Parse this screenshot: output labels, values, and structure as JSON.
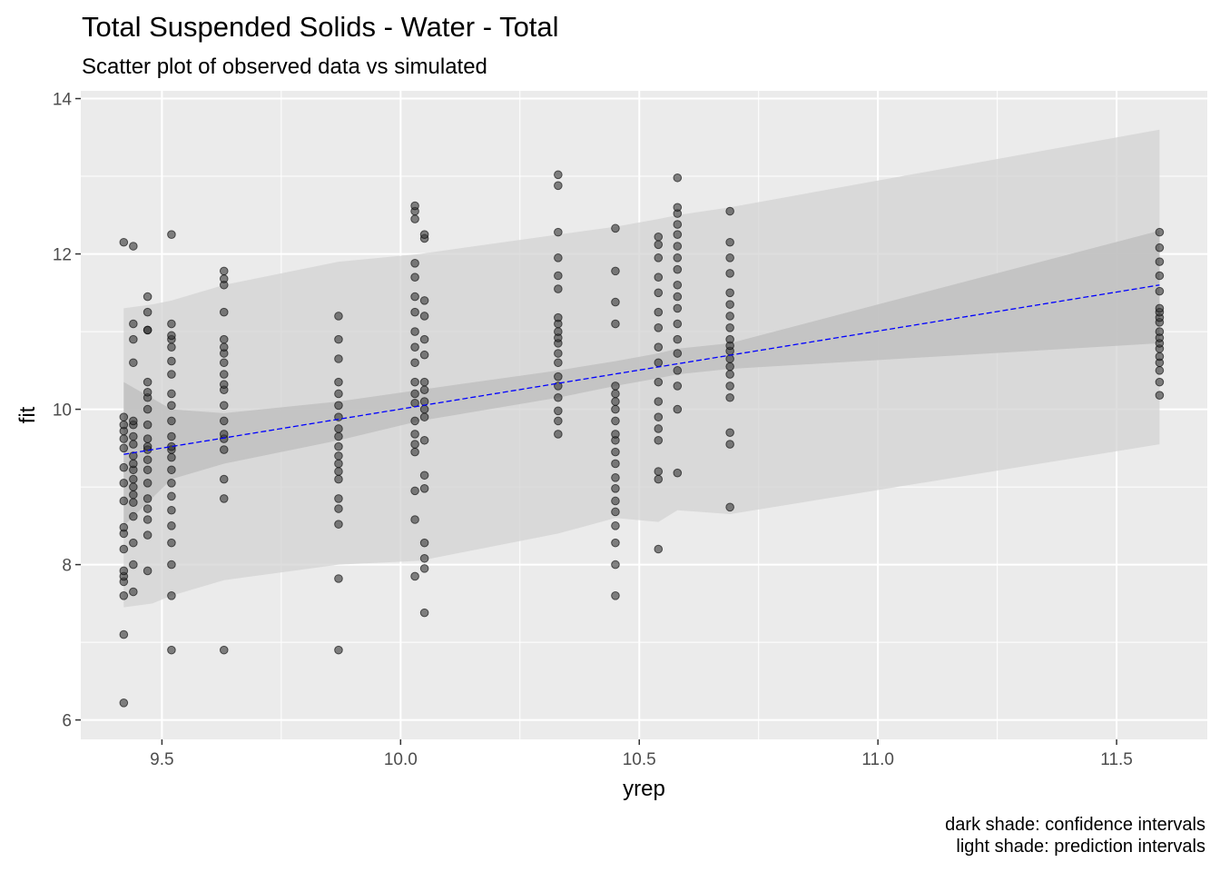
{
  "title": "Total Suspended Solids - Water - Total",
  "subtitle": "Scatter plot of observed data vs simulated",
  "caption": {
    "line1": "dark shade: confidence intervals",
    "line2": "light shade: prediction intervals"
  },
  "colors": {
    "panel": "#EBEBEB",
    "grid": "#FFFFFF",
    "point": "#333333",
    "fit_line": "#0000FF",
    "confidence_band": "#BEBEBE",
    "prediction_band": "#D3D3D3"
  },
  "chart_data": {
    "type": "scatter",
    "xlabel": "yrep",
    "ylabel": "fit",
    "xlim": [
      9.33,
      11.69
    ],
    "ylim": [
      5.75,
      14.1
    ],
    "x_ticks": [
      9.5,
      10.0,
      10.5,
      11.0,
      11.5
    ],
    "x_tick_labels": [
      "9.5",
      "10.0",
      "10.5",
      "11.0",
      "11.5"
    ],
    "y_ticks": [
      6,
      8,
      10,
      12,
      14
    ],
    "y_tick_labels": [
      "6",
      "8",
      "10",
      "12",
      "14"
    ],
    "grid": true,
    "fit_line": {
      "x": [
        9.42,
        11.59
      ],
      "y": [
        9.42,
        11.6
      ]
    },
    "confidence_band": {
      "x": [
        9.42,
        9.52,
        9.63,
        9.87,
        10.04,
        10.33,
        10.45,
        10.54,
        10.58,
        10.69,
        11.59
      ],
      "upper": [
        10.35,
        10.0,
        9.95,
        10.1,
        10.25,
        10.5,
        10.62,
        10.72,
        10.78,
        10.85,
        12.3
      ],
      "lower": [
        8.5,
        9.1,
        9.3,
        9.6,
        9.85,
        10.15,
        10.3,
        10.4,
        10.45,
        10.52,
        10.85
      ]
    },
    "prediction_band": {
      "x": [
        9.42,
        9.48,
        9.52,
        9.63,
        9.87,
        10.04,
        10.33,
        10.45,
        10.54,
        10.58,
        10.69,
        11.59
      ],
      "upper": [
        11.3,
        11.35,
        11.4,
        11.6,
        11.9,
        12.0,
        12.25,
        12.35,
        12.45,
        12.5,
        12.6,
        13.6
      ],
      "lower": [
        7.45,
        7.5,
        7.6,
        7.8,
        8.0,
        8.05,
        8.4,
        8.6,
        8.55,
        8.7,
        8.65,
        9.55
      ]
    },
    "series": [
      {
        "x": 9.42,
        "y": [
          6.22,
          7.1,
          7.6,
          7.78,
          7.85,
          7.92,
          8.2,
          8.4,
          8.48,
          8.82,
          9.05,
          9.25,
          9.5,
          9.62,
          9.72,
          9.8,
          9.9,
          12.15
        ]
      },
      {
        "x": 9.44,
        "y": [
          7.65,
          8.0,
          8.28,
          8.62,
          8.8,
          8.9,
          9.0,
          9.1,
          9.22,
          9.3,
          9.4,
          9.55,
          9.65,
          9.8,
          9.85,
          10.6,
          10.9,
          11.1,
          12.1
        ]
      },
      {
        "x": 9.47,
        "y": [
          7.92,
          8.38,
          8.58,
          8.72,
          8.85,
          9.05,
          9.22,
          9.35,
          9.48,
          9.52,
          9.62,
          9.8,
          10.0,
          10.15,
          10.22,
          10.35,
          11.02,
          11.02,
          11.25,
          11.45
        ]
      },
      {
        "x": 9.52,
        "y": [
          6.9,
          7.6,
          8.0,
          8.28,
          8.5,
          8.7,
          8.88,
          9.05,
          9.22,
          9.38,
          9.48,
          9.52,
          9.65,
          9.85,
          10.05,
          10.2,
          10.45,
          10.62,
          10.8,
          10.9,
          10.95,
          11.1,
          12.25
        ]
      },
      {
        "x": 9.63,
        "y": [
          6.9,
          8.85,
          9.1,
          9.48,
          9.62,
          9.68,
          9.85,
          10.05,
          10.25,
          10.32,
          10.45,
          10.6,
          10.72,
          10.8,
          10.9,
          11.25,
          11.6,
          11.68,
          11.78
        ]
      },
      {
        "x": 9.87,
        "y": [
          6.9,
          7.82,
          8.52,
          8.72,
          8.85,
          9.1,
          9.2,
          9.3,
          9.4,
          9.52,
          9.65,
          9.75,
          9.9,
          10.05,
          10.2,
          10.35,
          10.65,
          10.9,
          11.2
        ]
      },
      {
        "x": 10.03,
        "y": [
          7.85,
          8.58,
          8.95,
          9.45,
          9.55,
          9.68,
          9.85,
          10.08,
          10.2,
          10.35,
          10.6,
          10.8,
          11.0,
          11.25,
          11.45,
          11.7,
          11.88,
          12.45,
          12.55,
          12.62
        ]
      },
      {
        "x": 10.05,
        "y": [
          7.38,
          7.95,
          8.08,
          8.28,
          8.98,
          9.15,
          9.6,
          9.9,
          10.0,
          10.1,
          10.25,
          10.35,
          10.7,
          10.9,
          11.2,
          11.4,
          12.2,
          12.25
        ]
      },
      {
        "x": 10.33,
        "y": [
          9.68,
          9.85,
          9.98,
          10.15,
          10.3,
          10.42,
          10.6,
          10.72,
          10.85,
          10.92,
          11.0,
          11.1,
          11.18,
          11.55,
          11.72,
          11.95,
          12.28,
          12.88,
          13.02
        ]
      },
      {
        "x": 10.45,
        "y": [
          7.6,
          8.0,
          8.28,
          8.5,
          8.68,
          8.82,
          8.98,
          9.12,
          9.3,
          9.45,
          9.6,
          9.68,
          9.85,
          10.0,
          10.1,
          10.2,
          10.3,
          11.1,
          11.38,
          11.78,
          12.33
        ]
      },
      {
        "x": 10.54,
        "y": [
          8.2,
          9.1,
          9.2,
          9.6,
          9.75,
          9.9,
          10.1,
          10.35,
          10.6,
          10.8,
          11.05,
          11.25,
          11.5,
          11.7,
          11.95,
          12.12,
          12.22
        ]
      },
      {
        "x": 10.58,
        "y": [
          9.18,
          10.0,
          10.3,
          10.5,
          10.72,
          10.9,
          11.1,
          11.3,
          11.45,
          11.6,
          11.8,
          11.95,
          12.1,
          12.25,
          12.38,
          12.52,
          12.6,
          12.98
        ]
      },
      {
        "x": 10.69,
        "y": [
          8.74,
          9.55,
          9.7,
          10.15,
          10.3,
          10.45,
          10.55,
          10.65,
          10.75,
          10.82,
          10.9,
          11.05,
          11.2,
          11.35,
          11.5,
          11.75,
          11.95,
          12.15,
          12.55
        ]
      },
      {
        "x": 11.59,
        "y": [
          10.18,
          10.35,
          10.5,
          10.6,
          10.68,
          10.78,
          10.85,
          10.92,
          11.0,
          11.12,
          11.18,
          11.25,
          11.3,
          11.52,
          11.72,
          11.9,
          12.08,
          12.28
        ]
      }
    ]
  }
}
